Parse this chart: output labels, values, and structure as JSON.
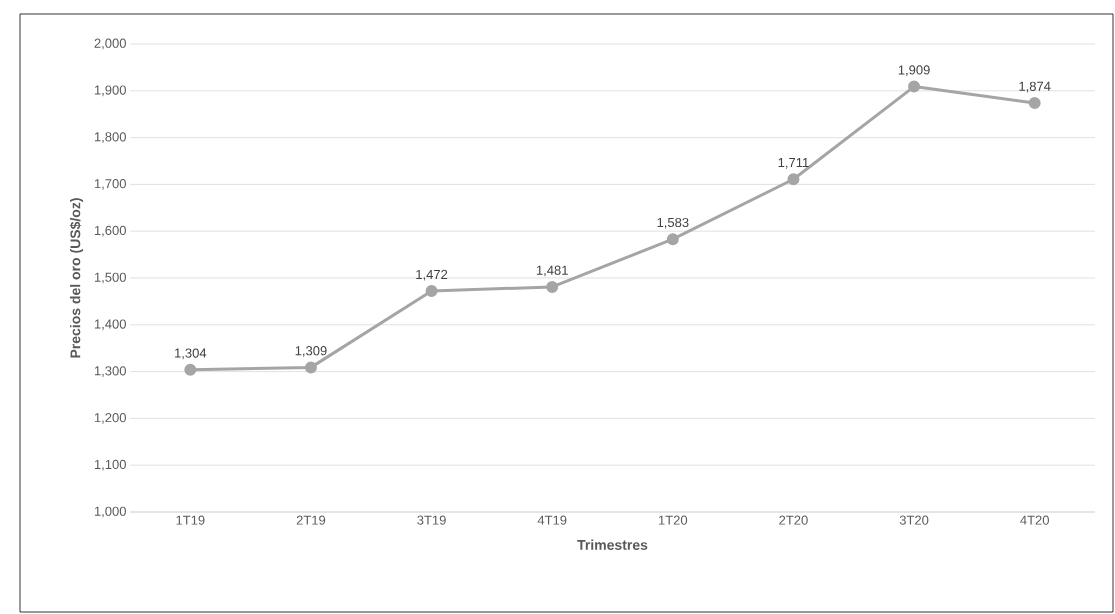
{
  "chart_data": {
    "type": "line",
    "xlabel": "Trimestres",
    "ylabel": "Precios del oro (US$/oz)",
    "categories": [
      "1T19",
      "2T19",
      "3T19",
      "4T19",
      "1T20",
      "2T20",
      "3T20",
      "4T20"
    ],
    "series": [
      {
        "color": "#a5a5a5",
        "values": [
          1304,
          1309,
          1472,
          1481,
          1583,
          1711,
          1909,
          1874
        ],
        "value_labels": [
          "1,304",
          "1,309",
          "1,472",
          "1,481",
          "1,583",
          "1,711",
          "1,909",
          "1,874"
        ]
      }
    ],
    "ylim": [
      1000,
      2000
    ],
    "yticks": [
      {
        "value": 1000,
        "label": "1,000"
      },
      {
        "value": 1100,
        "label": "1,100"
      },
      {
        "value": 1200,
        "label": "1,200"
      },
      {
        "value": 1300,
        "label": "1,300"
      },
      {
        "value": 1400,
        "label": "1,400"
      },
      {
        "value": 1500,
        "label": "1,500"
      },
      {
        "value": 1600,
        "label": "1,600"
      },
      {
        "value": 1700,
        "label": "1,700"
      },
      {
        "value": 1800,
        "label": "1,800"
      },
      {
        "value": 1900,
        "label": "1,900"
      },
      {
        "value": 2000,
        "label": "2,000"
      }
    ],
    "grid": "y",
    "marker": "circle",
    "line_style": "solid"
  }
}
